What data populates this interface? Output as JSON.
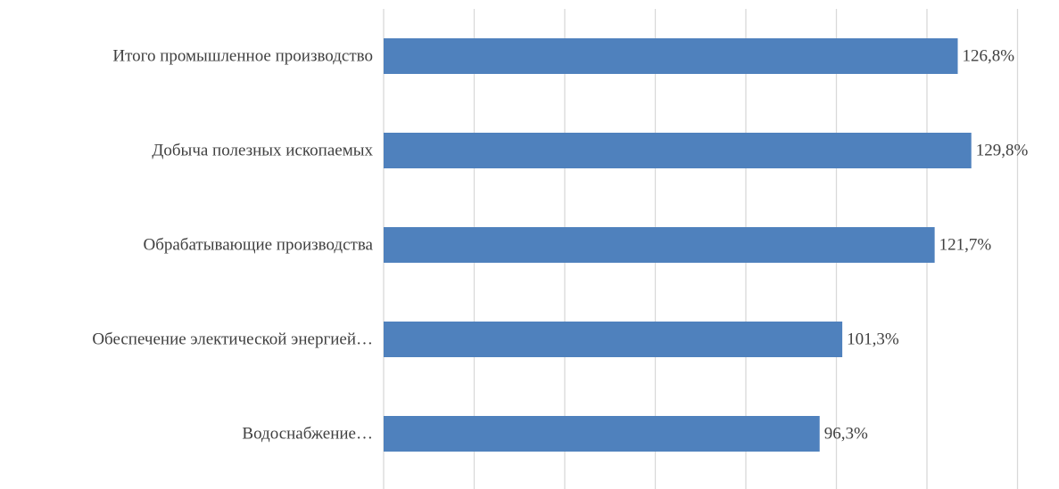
{
  "chart_data": {
    "type": "bar",
    "orientation": "horizontal",
    "categories": [
      "Итого промышленное производство",
      "Добыча полезных ископаемых",
      "Обрабатывающие производства",
      "Обеспечение электической энергией…",
      "Водоснабжение…"
    ],
    "values": [
      126.8,
      129.8,
      121.7,
      101.3,
      96.3
    ],
    "value_labels": [
      "126,8%",
      "129,8%",
      "121,7%",
      "101,3%",
      "96,3%"
    ],
    "xlim": [
      0,
      140
    ],
    "x_gridline_step": 20,
    "grid": "vertical",
    "bar_color": "#4f81bd",
    "gridline_color": "#d9d9d9",
    "title": "",
    "xlabel": "",
    "ylabel": ""
  }
}
